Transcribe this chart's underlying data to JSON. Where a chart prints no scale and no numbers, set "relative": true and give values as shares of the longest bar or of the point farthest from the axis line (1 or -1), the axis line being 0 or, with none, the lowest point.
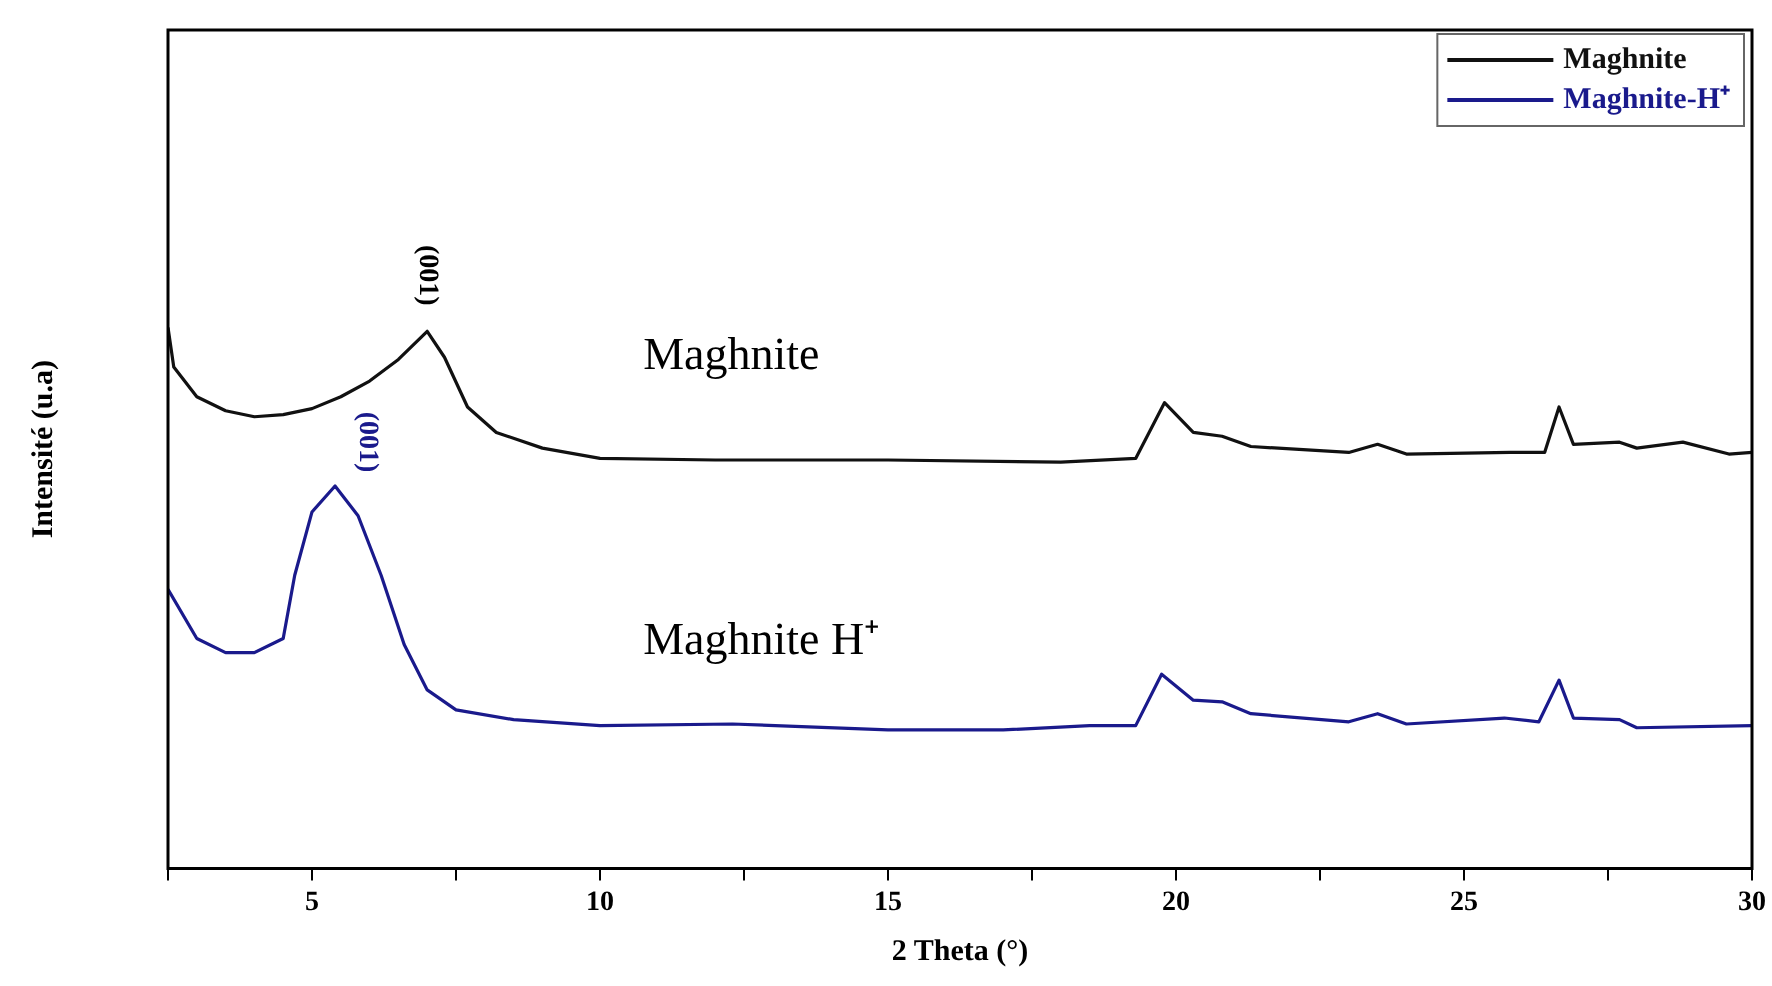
{
  "chart_data": {
    "type": "line",
    "xlabel": "2 Theta (°)",
    "ylabel": "Intensité (u.a)",
    "relative": true,
    "legend": "top right",
    "grid": false,
    "marker": "none",
    "line_style": "solid",
    "xlim": [
      2.5,
      30
    ],
    "xticks": [
      {
        "value": 2.5,
        "label": null
      },
      5,
      {
        "value": 7.5,
        "label": null
      },
      10,
      {
        "value": 12.5,
        "label": null
      },
      15,
      {
        "value": 17.5,
        "label": null
      },
      20,
      {
        "value": 22.5,
        "label": null
      },
      25,
      {
        "value": 27.5,
        "label": null
      },
      30
    ],
    "series": [
      {
        "name": "Maghnite",
        "color": "#111111",
        "x": [
          2.5,
          2.6,
          3,
          3.5,
          4,
          4.5,
          5,
          5.5,
          6,
          6.5,
          7,
          7.3,
          7.7,
          8.2,
          9,
          10,
          12,
          15,
          18,
          19.3,
          19.8,
          20.3,
          20.8,
          21.3,
          23,
          23.5,
          24,
          25.8,
          26.4,
          26.65,
          26.9,
          27.7,
          28,
          28.8,
          29.6,
          30
        ],
        "values": [
          1,
          0.927,
          0.872,
          0.846,
          0.835,
          0.839,
          0.85,
          0.872,
          0.901,
          0.941,
          0.993,
          0.945,
          0.853,
          0.806,
          0.777,
          0.758,
          0.755,
          0.755,
          0.751,
          0.758,
          0.861,
          0.806,
          0.799,
          0.78,
          0.769,
          0.784,
          0.766,
          0.769,
          0.769,
          0.853,
          0.784,
          0.788,
          0.777,
          0.788,
          0.766,
          0.769
        ]
      },
      {
        "name": "Maghnite-H⁺",
        "color": "#1a1a8c",
        "x": [
          2.5,
          3,
          3.5,
          4,
          4.5,
          4.7,
          5,
          5.4,
          5.8,
          6.2,
          6.6,
          7,
          7.5,
          8.5,
          10,
          12.3,
          15,
          17,
          18.5,
          19.3,
          19.75,
          20.3,
          20.8,
          21.3,
          23,
          23.5,
          24,
          25.7,
          26.3,
          26.65,
          26.9,
          27.7,
          28,
          30
        ],
        "values": [
          0.516,
          0.425,
          0.399,
          0.399,
          0.425,
          0.542,
          0.659,
          0.707,
          0.652,
          0.542,
          0.414,
          0.33,
          0.293,
          0.275,
          0.264,
          0.267,
          0.256,
          0.256,
          0.264,
          0.264,
          0.359,
          0.311,
          0.308,
          0.286,
          0.271,
          0.286,
          0.267,
          0.278,
          0.271,
          0.348,
          0.278,
          0.275,
          0.26,
          0.264
        ]
      }
    ],
    "annotations": [
      "(001)",
      "(001)",
      "Maghnite",
      "Maghnite H⁺"
    ]
  }
}
